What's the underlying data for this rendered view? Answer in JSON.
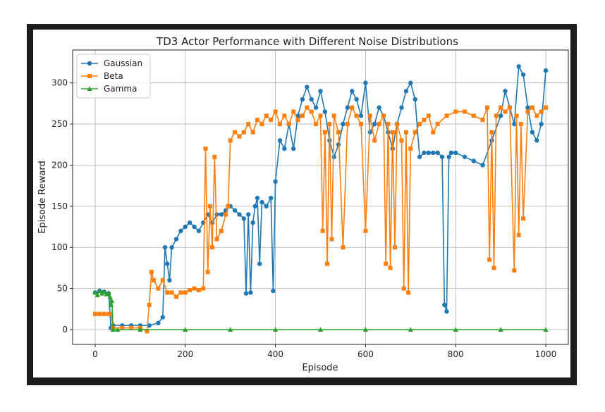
{
  "chart_data": {
    "type": "line",
    "title": "TD3 Actor Performance with Different Noise Distributions",
    "xlabel": "Episode",
    "ylabel": "Episode Reward",
    "xlim": [
      -50,
      1050
    ],
    "ylim": [
      -18,
      340
    ],
    "xticks": [
      0,
      200,
      400,
      600,
      800,
      1000
    ],
    "yticks": [
      0,
      50,
      100,
      150,
      200,
      250,
      300
    ],
    "grid": true,
    "legend": "top-left",
    "series": [
      {
        "name": "Gaussian",
        "color": "#1f77b4",
        "marker": "circle",
        "x": [
          0,
          10,
          20,
          30,
          35,
          40,
          60,
          80,
          100,
          120,
          140,
          150,
          155,
          160,
          165,
          170,
          180,
          190,
          200,
          210,
          220,
          230,
          240,
          250,
          260,
          270,
          280,
          290,
          300,
          310,
          320,
          330,
          335,
          340,
          345,
          350,
          355,
          360,
          365,
          370,
          380,
          390,
          395,
          400,
          410,
          420,
          430,
          440,
          450,
          460,
          470,
          480,
          490,
          500,
          510,
          520,
          530,
          540,
          550,
          560,
          570,
          580,
          590,
          600,
          610,
          620,
          630,
          640,
          650,
          660,
          670,
          680,
          690,
          700,
          710,
          720,
          730,
          740,
          750,
          760,
          770,
          775,
          780,
          785,
          790,
          800,
          820,
          840,
          860,
          880,
          900,
          910,
          920,
          930,
          940,
          950,
          960,
          970,
          980,
          990,
          1000
        ],
        "y": [
          45,
          47,
          46,
          44,
          2,
          5,
          5,
          5,
          5,
          5,
          8,
          15,
          100,
          80,
          60,
          100,
          110,
          120,
          125,
          130,
          125,
          120,
          130,
          140,
          130,
          140,
          140,
          145,
          150,
          145,
          140,
          135,
          44,
          140,
          45,
          130,
          150,
          160,
          80,
          155,
          150,
          160,
          47,
          180,
          230,
          220,
          250,
          220,
          260,
          280,
          295,
          280,
          270,
          290,
          265,
          230,
          210,
          225,
          250,
          270,
          290,
          280,
          260,
          300,
          240,
          250,
          270,
          260,
          240,
          220,
          250,
          270,
          290,
          300,
          280,
          210,
          215,
          215,
          215,
          215,
          210,
          30,
          22,
          210,
          215,
          215,
          210,
          205,
          200,
          230,
          260,
          290,
          270,
          250,
          320,
          310,
          270,
          240,
          230,
          250,
          315
        ]
      },
      {
        "name": "Beta",
        "color": "#ff7f0e",
        "marker": "square",
        "x": [
          0,
          10,
          20,
          30,
          35,
          40,
          60,
          80,
          100,
          115,
          120,
          125,
          130,
          140,
          150,
          160,
          170,
          180,
          190,
          200,
          210,
          220,
          230,
          240,
          245,
          250,
          255,
          260,
          265,
          270,
          280,
          290,
          295,
          300,
          310,
          320,
          330,
          340,
          350,
          360,
          370,
          380,
          390,
          400,
          410,
          420,
          430,
          440,
          450,
          460,
          470,
          480,
          490,
          500,
          505,
          510,
          515,
          520,
          525,
          530,
          540,
          550,
          560,
          570,
          580,
          590,
          600,
          610,
          620,
          630,
          640,
          645,
          650,
          655,
          660,
          665,
          670,
          680,
          685,
          690,
          695,
          700,
          710,
          720,
          730,
          740,
          750,
          760,
          780,
          800,
          820,
          840,
          860,
          870,
          875,
          880,
          885,
          890,
          900,
          910,
          920,
          930,
          935,
          940,
          945,
          950,
          960,
          970,
          980,
          990,
          1000
        ],
        "y": [
          19,
          19,
          19,
          19,
          19,
          2,
          2,
          2,
          2,
          -2,
          30,
          70,
          60,
          50,
          60,
          45,
          45,
          40,
          45,
          45,
          48,
          50,
          48,
          50,
          220,
          70,
          150,
          100,
          210,
          110,
          120,
          140,
          150,
          230,
          240,
          235,
          240,
          250,
          240,
          255,
          250,
          260,
          255,
          265,
          250,
          260,
          250,
          265,
          255,
          260,
          270,
          265,
          250,
          260,
          120,
          240,
          80,
          250,
          110,
          260,
          240,
          100,
          250,
          270,
          260,
          250,
          120,
          260,
          230,
          250,
          260,
          80,
          250,
          75,
          240,
          100,
          250,
          230,
          50,
          240,
          45,
          220,
          240,
          250,
          255,
          260,
          240,
          250,
          260,
          265,
          265,
          260,
          255,
          270,
          85,
          240,
          75,
          260,
          270,
          265,
          270,
          72,
          260,
          115,
          250,
          135,
          265,
          270,
          260,
          265,
          270
        ]
      },
      {
        "name": "Gamma",
        "color": "#2ca02c",
        "marker": "triangle",
        "x": [
          0,
          5,
          10,
          15,
          20,
          25,
          30,
          33,
          35,
          37,
          40,
          50,
          100,
          200,
          300,
          400,
          500,
          600,
          700,
          800,
          900,
          1000
        ],
        "y": [
          45,
          42,
          47,
          44,
          46,
          43,
          45,
          40,
          30,
          35,
          0,
          0,
          0,
          0,
          0,
          0,
          0,
          0,
          0,
          0,
          0,
          0
        ]
      }
    ]
  }
}
